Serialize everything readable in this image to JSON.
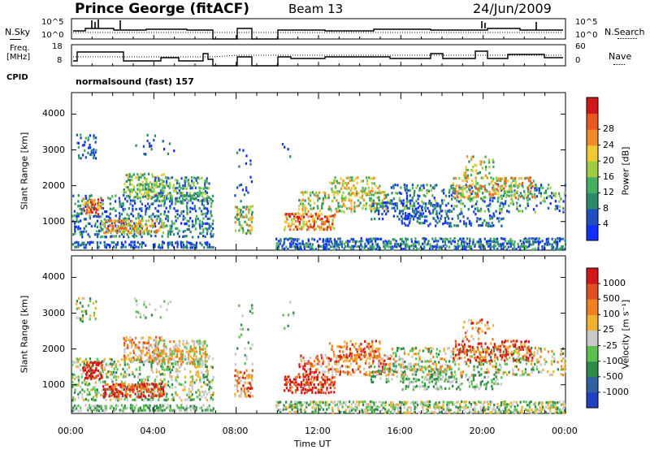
{
  "header": {
    "station": "Prince George (fitACF)",
    "beam": "Beam 13",
    "date": "24/Jun/2009"
  },
  "strip_labels": {
    "nsky": "N.Sky",
    "nsearch": "N.Search",
    "freq_line1": "Freq.",
    "freq_line2": "[MHz]",
    "nave": "Nave",
    "cpid": "CPID",
    "cpid_value": "normalsound (fast) 157",
    "left_top_tick_1": "10^5",
    "left_top_tick_2": "10^0",
    "right_top_tick_1": "10^5",
    "right_top_tick_2": "10^0",
    "freq_tick_1": "18",
    "freq_tick_2": "8",
    "nave_tick_1": "60",
    "nave_tick_2": "0"
  },
  "chart_data": [
    {
      "type": "heatmap",
      "name": "Power",
      "ylabel": "Slant Range [km]",
      "yticks": [
        "1000",
        "2000",
        "3000",
        "4000"
      ],
      "ylim": [
        200,
        4600
      ],
      "colorbar_label": "Power [dB]",
      "colorbar_ticks": [
        "4",
        "8",
        "12",
        "16",
        "20",
        "24",
        "28"
      ],
      "colorbar_colors": [
        "#1030ff",
        "#2050c0",
        "#2a8a6a",
        "#46b060",
        "#9ccc40",
        "#f0c830",
        "#f08c28",
        "#e85820",
        "#d01818"
      ]
    },
    {
      "type": "heatmap",
      "name": "Velocity",
      "ylabel": "Slant Range [km]",
      "yticks": [
        "1000",
        "2000",
        "3000",
        "4000"
      ],
      "ylim": [
        200,
        4600
      ],
      "colorbar_label": "Velocity [m s⁻¹]",
      "colorbar_ticks": [
        "1000",
        "500",
        "100",
        "25",
        "-25",
        "-100",
        "-500",
        "-1000"
      ],
      "colorbar_colors": [
        "#2040c0",
        "#3060a0",
        "#2f8a4a",
        "#5cc050",
        "#c8c8c8",
        "#f0b030",
        "#f08020",
        "#e05020",
        "#d01818"
      ]
    }
  ],
  "xaxis": {
    "label": "Time UT",
    "ticks": [
      "00:00",
      "04:00",
      "08:00",
      "12:00",
      "16:00",
      "20:00",
      "00:00"
    ]
  }
}
